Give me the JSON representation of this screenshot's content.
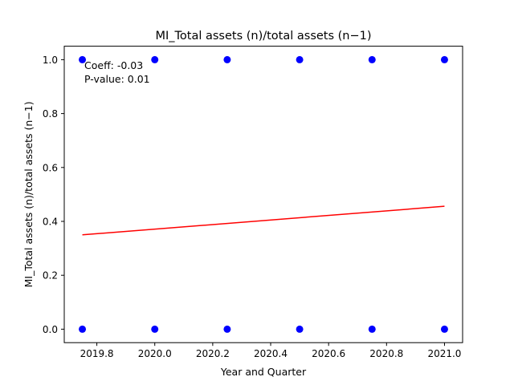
{
  "chart_data": {
    "type": "scatter",
    "title": "MI_Total assets (n)/total assets (n−1)",
    "xlabel": "Year and Quarter",
    "ylabel": "MI_Total assets (n)/total assets (n−1)",
    "xlim": [
      2019.6875,
      2021.0625
    ],
    "ylim": [
      -0.05,
      1.05
    ],
    "xticks": [
      2019.8,
      2020.0,
      2020.2,
      2020.4,
      2020.6,
      2020.8,
      2021.0
    ],
    "xtick_labels": [
      "2019.8",
      "2020.0",
      "2020.2",
      "2020.4",
      "2020.6",
      "2020.8",
      "2021.0"
    ],
    "yticks": [
      0.0,
      0.2,
      0.4,
      0.6,
      0.8,
      1.0
    ],
    "ytick_labels": [
      "0.0",
      "0.2",
      "0.4",
      "0.6",
      "0.8",
      "1.0"
    ],
    "grid": false,
    "series": [
      {
        "kind": "points",
        "color": "#0000ff",
        "points": [
          {
            "x": 2019.75,
            "y": 0
          },
          {
            "x": 2019.75,
            "y": 1
          },
          {
            "x": 2020.0,
            "y": 0
          },
          {
            "x": 2020.0,
            "y": 1
          },
          {
            "x": 2020.25,
            "y": 0
          },
          {
            "x": 2020.25,
            "y": 1
          },
          {
            "x": 2020.5,
            "y": 0
          },
          {
            "x": 2020.5,
            "y": 1
          },
          {
            "x": 2020.75,
            "y": 0
          },
          {
            "x": 2020.75,
            "y": 1
          },
          {
            "x": 2021.0,
            "y": 0
          },
          {
            "x": 2021.0,
            "y": 1
          }
        ]
      },
      {
        "kind": "line",
        "color": "#ff0000",
        "points": [
          {
            "x": 2019.75,
            "y": 0.35
          },
          {
            "x": 2021.0,
            "y": 0.456
          }
        ]
      }
    ],
    "annotations": [
      "Coeff: -0.03",
      "P-value: 0.01"
    ]
  }
}
